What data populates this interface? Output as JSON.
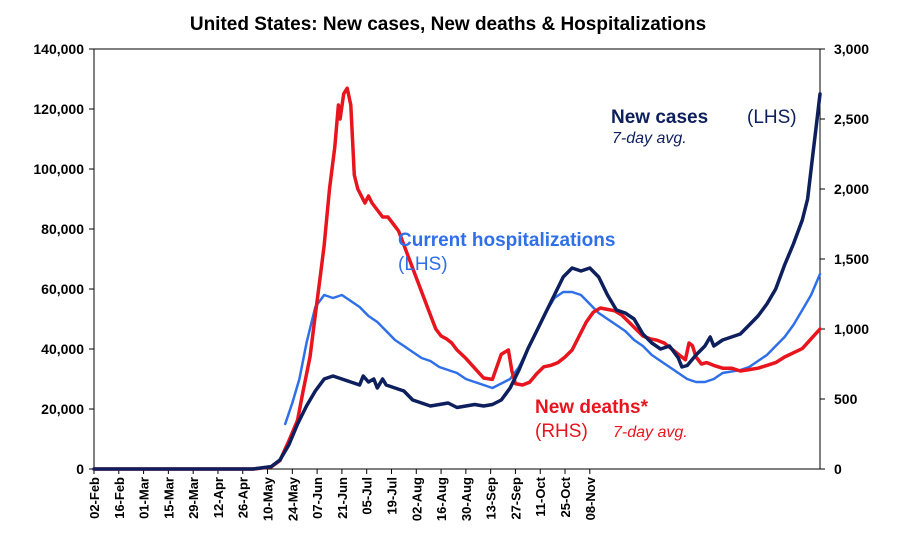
{
  "chart_data": {
    "type": "line",
    "title": "United States: New cases, New deaths & Hospitalizations",
    "x_ticks": [
      "02-Feb",
      "16-Feb",
      "01-Mar",
      "15-Mar",
      "29-Mar",
      "12-Apr",
      "26-Apr",
      "10-May",
      "24-May",
      "07-Jun",
      "21-Jun",
      "05-Jul",
      "19-Jul",
      "02-Aug",
      "16-Aug",
      "30-Aug",
      "13-Sep",
      "27-Sep",
      "11-Oct",
      "25-Oct",
      "08-Nov"
    ],
    "y_left": {
      "ylim": [
        0,
        140000
      ],
      "ticks": [
        "0",
        "20,000",
        "40,000",
        "60,000",
        "80,000",
        "100,000",
        "120,000",
        "140,000"
      ]
    },
    "y_right": {
      "ylim": [
        0,
        3000
      ],
      "ticks": [
        "0",
        "500",
        "1,000",
        "1,500",
        "2,000",
        "2,500",
        "3,000"
      ]
    },
    "annotations": {
      "cases_title": "New cases",
      "cases_axis": "(LHS)",
      "cases_sub": "7-day avg.",
      "hosp_title": "Current hospitalizations",
      "hosp_axis": "(LHS)",
      "deaths_title": "New deaths*",
      "deaths_axis": "(RHS)",
      "deaths_sub": "7-day avg."
    },
    "series": [
      {
        "name": "New cases",
        "axis": "left",
        "color": "#0d1f5c",
        "points": [
          [
            0,
            0
          ],
          [
            70,
            0
          ],
          [
            90,
            0
          ],
          [
            100,
            800
          ],
          [
            105,
            3000
          ],
          [
            110,
            8000
          ],
          [
            115,
            15000
          ],
          [
            120,
            21000
          ],
          [
            125,
            26000
          ],
          [
            130,
            30000
          ],
          [
            135,
            31000
          ],
          [
            140,
            30000
          ],
          [
            145,
            29000
          ],
          [
            150,
            28000
          ],
          [
            152,
            31000
          ],
          [
            155,
            29000
          ],
          [
            158,
            30000
          ],
          [
            160,
            27000
          ],
          [
            163,
            30000
          ],
          [
            165,
            28000
          ],
          [
            170,
            27000
          ],
          [
            175,
            26000
          ],
          [
            180,
            23000
          ],
          [
            185,
            22000
          ],
          [
            190,
            21000
          ],
          [
            195,
            21500
          ],
          [
            200,
            22000
          ],
          [
            205,
            20500
          ],
          [
            210,
            21000
          ],
          [
            215,
            21500
          ],
          [
            220,
            21000
          ],
          [
            225,
            21500
          ],
          [
            230,
            23000
          ],
          [
            235,
            27000
          ],
          [
            240,
            33000
          ],
          [
            245,
            40000
          ],
          [
            250,
            46000
          ],
          [
            255,
            52000
          ],
          [
            260,
            58000
          ],
          [
            265,
            64000
          ],
          [
            270,
            67000
          ],
          [
            275,
            66000
          ],
          [
            280,
            67000
          ],
          [
            285,
            64000
          ],
          [
            290,
            58000
          ],
          [
            295,
            53000
          ],
          [
            300,
            52000
          ],
          [
            305,
            50000
          ],
          [
            310,
            45000
          ],
          [
            315,
            42000
          ],
          [
            320,
            40000
          ],
          [
            325,
            41000
          ],
          [
            330,
            37000
          ],
          [
            332,
            34000
          ],
          [
            335,
            34500
          ],
          [
            340,
            38000
          ],
          [
            345,
            41000
          ],
          [
            348,
            44000
          ],
          [
            350,
            41000
          ],
          [
            355,
            43000
          ],
          [
            360,
            44000
          ],
          [
            365,
            45000
          ],
          [
            370,
            48000
          ],
          [
            375,
            51000
          ],
          [
            380,
            55000
          ],
          [
            385,
            60000
          ],
          [
            390,
            68000
          ],
          [
            395,
            75000
          ],
          [
            400,
            83000
          ],
          [
            403,
            90000
          ],
          [
            406,
            105000
          ],
          [
            408,
            115000
          ],
          [
            410,
            125000
          ]
        ]
      },
      {
        "name": "Current hospitalizations",
        "axis": "left",
        "color": "#2f6fe8",
        "points": [
          [
            108,
            15000
          ],
          [
            112,
            22000
          ],
          [
            116,
            30000
          ],
          [
            120,
            42000
          ],
          [
            125,
            54000
          ],
          [
            130,
            58000
          ],
          [
            135,
            57000
          ],
          [
            140,
            58000
          ],
          [
            145,
            56000
          ],
          [
            150,
            54000
          ],
          [
            155,
            51000
          ],
          [
            160,
            49000
          ],
          [
            165,
            46000
          ],
          [
            170,
            43000
          ],
          [
            175,
            41000
          ],
          [
            180,
            39000
          ],
          [
            185,
            37000
          ],
          [
            190,
            36000
          ],
          [
            195,
            34000
          ],
          [
            200,
            33000
          ],
          [
            205,
            32000
          ],
          [
            210,
            30000
          ],
          [
            215,
            29000
          ],
          [
            220,
            28000
          ],
          [
            225,
            27000
          ],
          [
            230,
            28500
          ],
          [
            235,
            30000
          ],
          [
            240,
            34000
          ],
          [
            245,
            40000
          ],
          [
            250,
            46000
          ],
          [
            255,
            52000
          ],
          [
            260,
            57000
          ],
          [
            265,
            59000
          ],
          [
            270,
            59000
          ],
          [
            275,
            58000
          ],
          [
            280,
            55000
          ],
          [
            285,
            52000
          ],
          [
            290,
            50000
          ],
          [
            295,
            48000
          ],
          [
            300,
            46000
          ],
          [
            305,
            43000
          ],
          [
            310,
            41000
          ],
          [
            315,
            38000
          ],
          [
            320,
            36000
          ],
          [
            325,
            34000
          ],
          [
            330,
            32000
          ],
          [
            335,
            30000
          ],
          [
            340,
            29000
          ],
          [
            345,
            29000
          ],
          [
            350,
            30000
          ],
          [
            355,
            32000
          ],
          [
            360,
            32500
          ],
          [
            365,
            33000
          ],
          [
            370,
            34000
          ],
          [
            375,
            36000
          ],
          [
            380,
            38000
          ],
          [
            385,
            41000
          ],
          [
            390,
            44000
          ],
          [
            395,
            48000
          ],
          [
            400,
            53000
          ],
          [
            405,
            58000
          ],
          [
            410,
            65000
          ]
        ]
      },
      {
        "name": "New deaths*",
        "axis": "right",
        "color": "#e8141e",
        "points": [
          [
            0,
            0
          ],
          [
            90,
            0
          ],
          [
            100,
            15
          ],
          [
            105,
            60
          ],
          [
            110,
            200
          ],
          [
            115,
            350
          ],
          [
            118,
            550
          ],
          [
            122,
            800
          ],
          [
            125,
            1100
          ],
          [
            128,
            1400
          ],
          [
            130,
            1600
          ],
          [
            133,
            2000
          ],
          [
            136,
            2300
          ],
          [
            138,
            2600
          ],
          [
            139,
            2500
          ],
          [
            141,
            2680
          ],
          [
            143,
            2720
          ],
          [
            145,
            2600
          ],
          [
            147,
            2100
          ],
          [
            149,
            2000
          ],
          [
            151,
            1950
          ],
          [
            153,
            1900
          ],
          [
            155,
            1950
          ],
          [
            157,
            1900
          ],
          [
            160,
            1850
          ],
          [
            163,
            1800
          ],
          [
            166,
            1800
          ],
          [
            169,
            1750
          ],
          [
            172,
            1700
          ],
          [
            175,
            1600
          ],
          [
            178,
            1500
          ],
          [
            181,
            1400
          ],
          [
            184,
            1300
          ],
          [
            187,
            1200
          ],
          [
            190,
            1100
          ],
          [
            193,
            1000
          ],
          [
            196,
            950
          ],
          [
            199,
            930
          ],
          [
            202,
            900
          ],
          [
            205,
            850
          ],
          [
            210,
            790
          ],
          [
            215,
            720
          ],
          [
            220,
            650
          ],
          [
            225,
            640
          ],
          [
            230,
            820
          ],
          [
            234,
            850
          ],
          [
            236,
            700
          ],
          [
            238,
            610
          ],
          [
            242,
            600
          ],
          [
            246,
            620
          ],
          [
            250,
            680
          ],
          [
            254,
            730
          ],
          [
            258,
            740
          ],
          [
            262,
            760
          ],
          [
            266,
            800
          ],
          [
            270,
            850
          ],
          [
            274,
            950
          ],
          [
            278,
            1050
          ],
          [
            282,
            1120
          ],
          [
            286,
            1150
          ],
          [
            290,
            1140
          ],
          [
            294,
            1130
          ],
          [
            298,
            1100
          ],
          [
            302,
            1050
          ],
          [
            306,
            1000
          ],
          [
            310,
            950
          ],
          [
            314,
            930
          ],
          [
            318,
            920
          ],
          [
            322,
            900
          ],
          [
            326,
            860
          ],
          [
            330,
            820
          ],
          [
            334,
            780
          ],
          [
            336,
            900
          ],
          [
            338,
            880
          ],
          [
            340,
            800
          ],
          [
            343,
            750
          ],
          [
            346,
            760
          ],
          [
            350,
            740
          ],
          [
            355,
            720
          ],
          [
            360,
            720
          ],
          [
            365,
            700
          ],
          [
            370,
            710
          ],
          [
            375,
            720
          ],
          [
            380,
            740
          ],
          [
            385,
            760
          ],
          [
            390,
            800
          ],
          [
            395,
            830
          ],
          [
            400,
            860
          ],
          [
            405,
            930
          ],
          [
            410,
            1000
          ]
        ]
      }
    ]
  }
}
